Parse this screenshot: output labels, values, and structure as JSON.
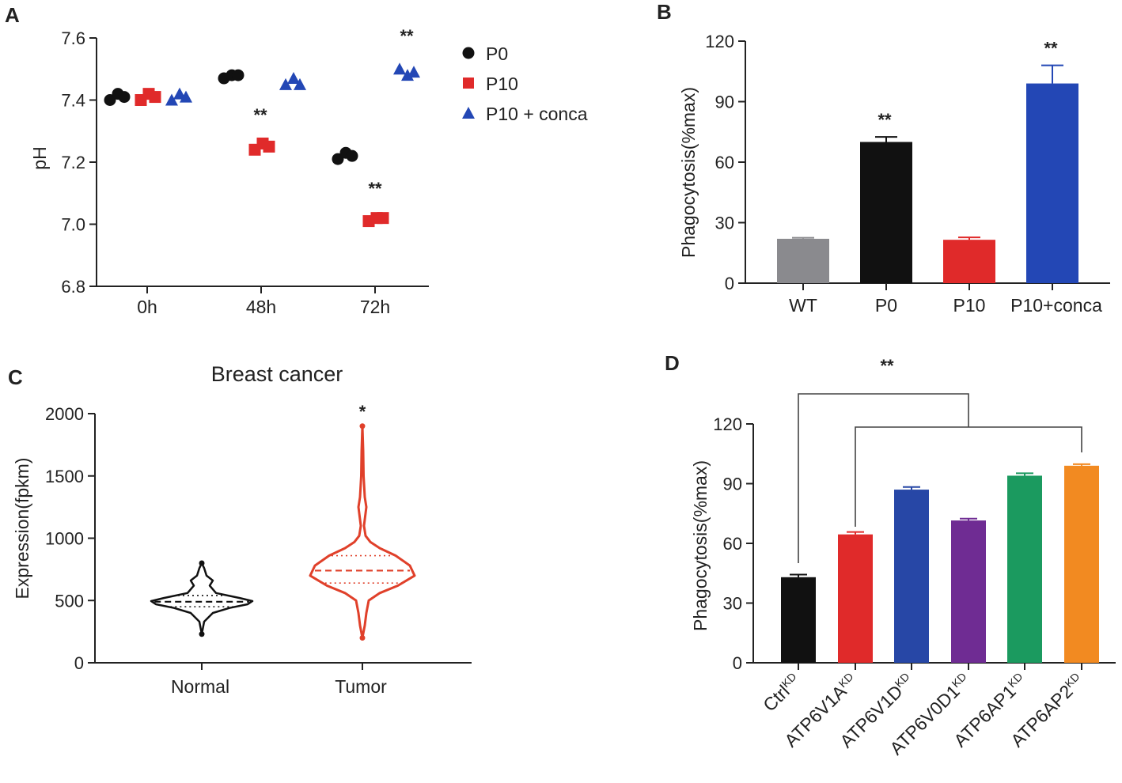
{
  "panels": {
    "A": {
      "label": "A"
    },
    "B": {
      "label": "B"
    },
    "C": {
      "label": "C"
    },
    "D": {
      "label": "D"
    }
  },
  "colors": {
    "black": "#111111",
    "red": "#e02a2a",
    "blue": "#2347b5",
    "grey": "#8a8a8e",
    "d_blue": "#2747a6",
    "purple": "#6f2c93",
    "green": "#1b9a5f",
    "orange": "#f28a21",
    "violin_red": "#e0402a"
  },
  "chart_data": [
    {
      "id": "A",
      "type": "scatter",
      "title": "",
      "xlabel": "",
      "ylabel": "pH",
      "ylim": [
        6.8,
        7.6
      ],
      "yticks": [
        "6.8",
        "7.0",
        "7.2",
        "7.4",
        "7.6"
      ],
      "categories": [
        "0h",
        "48h",
        "72h"
      ],
      "series": [
        {
          "name": "P0",
          "marker": "circle",
          "color": "#111111",
          "values": [
            [
              7.4,
              7.42,
              7.41
            ],
            [
              7.47,
              7.48,
              7.48
            ],
            [
              7.21,
              7.23,
              7.22
            ]
          ]
        },
        {
          "name": "P10",
          "marker": "square",
          "color": "#e02a2a",
          "values": [
            [
              7.4,
              7.42,
              7.41
            ],
            [
              7.24,
              7.26,
              7.25
            ],
            [
              7.01,
              7.02,
              7.02
            ]
          ]
        },
        {
          "name": "P10 + conca",
          "marker": "triangle",
          "color": "#2347b5",
          "values": [
            [
              7.4,
              7.42,
              7.41
            ],
            [
              7.45,
              7.47,
              7.45
            ],
            [
              7.5,
              7.48,
              7.49
            ]
          ]
        }
      ],
      "significance": [
        "**",
        "**",
        "**"
      ],
      "legend_position": "right"
    },
    {
      "id": "B",
      "type": "bar",
      "title": "",
      "xlabel": "",
      "ylabel": "Phagocytosis(%max)",
      "ylim": [
        0,
        120
      ],
      "yticks": [
        "0",
        "30",
        "60",
        "90",
        "120"
      ],
      "categories": [
        "WT",
        "P0",
        "P10",
        "P10+conca"
      ],
      "values": [
        22,
        70,
        21.5,
        99
      ],
      "errors": [
        0.5,
        2.5,
        1.2,
        9
      ],
      "colors": [
        "#8a8a8e",
        "#111111",
        "#e02a2a",
        "#2347b5"
      ],
      "significance": [
        "",
        "**",
        "",
        "**"
      ]
    },
    {
      "id": "C",
      "type": "violin",
      "title": "Breast cancer",
      "xlabel": "",
      "ylabel": "Expression(fpkm)",
      "ylim": [
        0,
        2000
      ],
      "yticks": [
        "0",
        "500",
        "1000",
        "1500",
        "2000"
      ],
      "categories": [
        "Normal",
        "Tumor"
      ],
      "groups": [
        {
          "name": "Normal",
          "color": "#111111",
          "min": 230,
          "max": 800,
          "median": 490,
          "q1": 450,
          "q3": 540
        },
        {
          "name": "Tumor",
          "color": "#e0402a",
          "min": 200,
          "max": 1900,
          "median": 740,
          "q1": 640,
          "q3": 860
        }
      ],
      "significance": [
        "",
        "*"
      ]
    },
    {
      "id": "D",
      "type": "bar",
      "title": "",
      "xlabel": "",
      "ylabel": "Phagocytosis(%max)",
      "ylim": [
        0,
        120
      ],
      "yticks": [
        "0",
        "30",
        "60",
        "90",
        "120"
      ],
      "categories": [
        {
          "base": "Ctrl",
          "sup": "KD"
        },
        {
          "base": "ATP6V1A",
          "sup": "KD"
        },
        {
          "base": "ATP6V1D",
          "sup": "KD"
        },
        {
          "base": "ATP6V0D1",
          "sup": "KD"
        },
        {
          "base": "ATP6AP1",
          "sup": "KD"
        },
        {
          "base": "ATP6AP2",
          "sup": "KD"
        }
      ],
      "values": [
        43,
        64.5,
        87,
        71.5,
        94,
        99
      ],
      "errors": [
        1.3,
        1.2,
        1.3,
        0.9,
        1.2,
        0.8
      ],
      "colors": [
        "#111111",
        "#e02a2a",
        "#2747a6",
        "#6f2c93",
        "#1b9a5f",
        "#f28a21"
      ],
      "significance_bracket": "**"
    }
  ]
}
